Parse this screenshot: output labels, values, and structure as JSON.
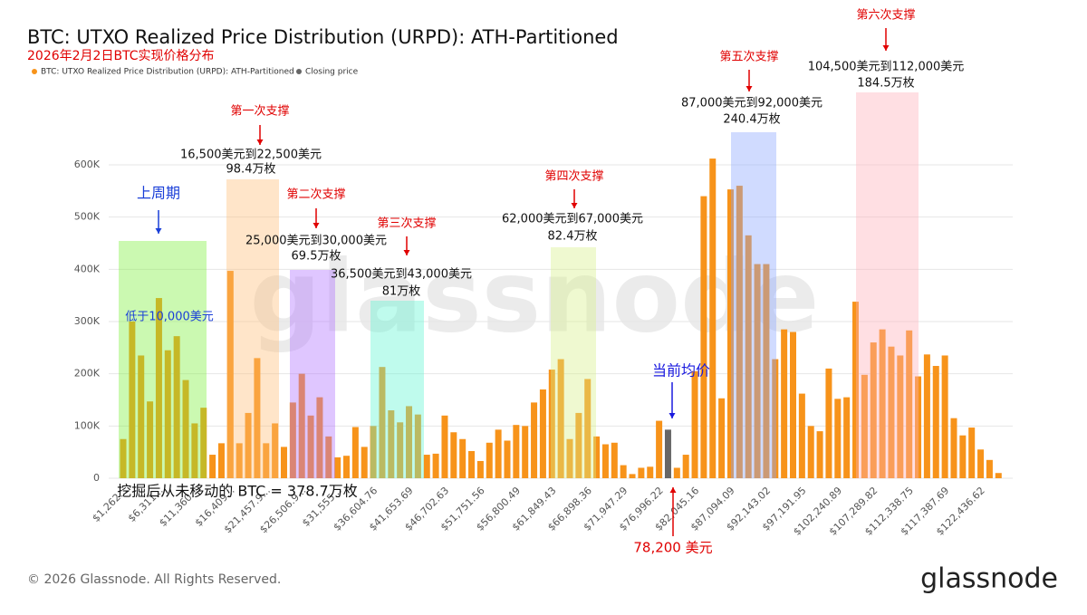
{
  "chart_data": {
    "type": "bar",
    "title": "BTC: UTXO Realized Price Distribution (URPD): ATH-Partitioned",
    "subtitle": "2026年2月2日BTC实现价格分布",
    "categories": [
      "$1,262...",
      null,
      null,
      null,
      "$6,311...",
      null,
      null,
      null,
      "$11,360...",
      null,
      null,
      null,
      "$16,409...",
      null,
      null,
      null,
      "$21,457.9...",
      null,
      null,
      null,
      "$26,506.9...",
      null,
      null,
      null,
      "$31,555...",
      null,
      null,
      null,
      "$36,604.76",
      null,
      null,
      null,
      "$41,653.69",
      null,
      null,
      null,
      "$46,702.63",
      null,
      null,
      null,
      "$51,751.56",
      null,
      null,
      null,
      "$56,800.49",
      null,
      null,
      null,
      "$61,849.43",
      null,
      null,
      null,
      "$66,898.36",
      null,
      null,
      null,
      "$71,947.29",
      null,
      null,
      null,
      "$76,996.22",
      null,
      null,
      null,
      "$82,045.16",
      null,
      null,
      null,
      "$87,094.09",
      null,
      null,
      null,
      "$92,143.02",
      null,
      null,
      null,
      "$97,191.95",
      null,
      null,
      null,
      "$102,240.89",
      null,
      null,
      null,
      "$107,289.82",
      null,
      null,
      null,
      "$112,338.75",
      null,
      null,
      null,
      "$117,387.69",
      null,
      null,
      null,
      "$122,436.62",
      null,
      null
    ],
    "series": [
      {
        "name": "BTC: UTXO Realized Price Distribution (URPD): ATH-Partitioned",
        "color": "#f7931a",
        "values": [
          75000,
          300000,
          235000,
          147000,
          345000,
          245000,
          272000,
          188000,
          105000,
          135000,
          45000,
          67000,
          397000,
          67000,
          125000,
          230000,
          67000,
          105000,
          60000,
          145000,
          200000,
          120000,
          155000,
          80000,
          40000,
          43000,
          98000,
          60000,
          100000,
          213000,
          130000,
          107000,
          138000,
          122000,
          45000,
          47000,
          120000,
          88000,
          75000,
          52000,
          33000,
          68000,
          93000,
          72000,
          102000,
          100000,
          145000,
          170000,
          208000,
          228000,
          75000,
          125000,
          190000,
          80000,
          65000,
          68000,
          25000,
          8000,
          20000,
          22000,
          110000,
          null,
          20000,
          45000,
          205000,
          540000,
          612000,
          153000,
          553000,
          560000,
          465000,
          410000,
          410000,
          228000,
          285000,
          280000,
          162000,
          100000,
          90000,
          210000,
          152000,
          155000,
          338000,
          198000,
          260000,
          285000,
          252000,
          235000,
          283000,
          195000,
          237000,
          215000,
          235000,
          115000,
          82000,
          97000,
          55000,
          35000,
          10000
        ]
      },
      {
        "name": "Closing price",
        "color": "#666666",
        "values": [
          null,
          null,
          null,
          null,
          null,
          null,
          null,
          null,
          null,
          null,
          null,
          null,
          null,
          null,
          null,
          null,
          null,
          null,
          null,
          null,
          null,
          null,
          null,
          null,
          null,
          null,
          null,
          null,
          null,
          null,
          null,
          null,
          null,
          null,
          null,
          null,
          null,
          null,
          null,
          null,
          null,
          null,
          null,
          null,
          null,
          null,
          null,
          null,
          null,
          null,
          null,
          null,
          null,
          null,
          null,
          null,
          null,
          null,
          null,
          null,
          null,
          93000,
          null,
          null,
          null,
          null,
          null,
          null,
          null,
          null,
          null,
          null,
          null,
          null,
          null,
          null,
          null,
          null,
          null,
          null,
          null,
          null,
          null,
          null,
          null,
          null,
          null,
          null,
          null,
          null,
          null,
          null,
          null,
          null,
          null,
          null,
          null,
          null,
          null
        ]
      }
    ],
    "ylim": [
      0,
      600000
    ],
    "yticks": [
      0,
      {
        "value": 100000,
        "label": "100K"
      },
      {
        "value": 200000,
        "label": "200K"
      },
      {
        "value": 300000,
        "label": "300K"
      },
      {
        "value": 400000,
        "label": "400K"
      },
      {
        "value": 500000,
        "label": "500K"
      },
      {
        "value": 600000,
        "label": "600K"
      }
    ],
    "grid": true,
    "legend": "top-left",
    "zones": [
      {
        "title": "上周期",
        "range": "低于10,000美元",
        "color": "#7cf03c"
      },
      {
        "title": "第一次支撑",
        "range": "16,500美元到22,500美元",
        "amount": "98.4万枚",
        "color": "#ffbf78"
      },
      {
        "title": "第二次支撑",
        "range": "25,000美元到30,000美元",
        "amount": "69.5万枚",
        "color": "#b070ff"
      },
      {
        "title": "第三次支撑",
        "range": "36,500美元到43,000美元",
        "amount": "81万枚",
        "color": "#60f5d2"
      },
      {
        "title": "第四次支撑",
        "range": "62,000美元到67,000美元",
        "amount": "82.4万枚",
        "color": "#d8f08a"
      },
      {
        "title": "第五次支撑",
        "range": "87,000美元到92,000美元",
        "amount": "240.4万枚",
        "color": "#8aa4ff"
      },
      {
        "title": "第六次支撑",
        "range": "104,500美元到112,000美元",
        "amount": "184.5万枚",
        "color": "#ffb0b8"
      }
    ],
    "annotations": {
      "current_label": "当前均价",
      "current_price": "78,200 美元",
      "unmoved": "挖掘后从未移动的 BTC = 378.7万枚"
    },
    "watermark": "glassnode",
    "footer": "© 2026 Glassnode. All Rights Reserved.",
    "logo": "glassnode"
  }
}
